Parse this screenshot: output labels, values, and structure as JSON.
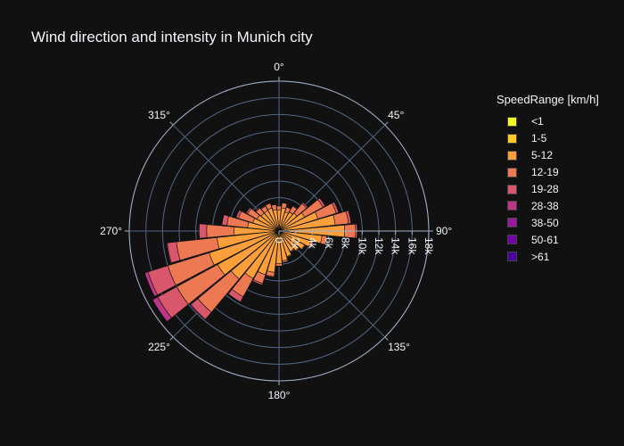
{
  "chart_data": {
    "type": "barpolar",
    "title": "Wind direction and intensity in Munich city",
    "legend_title": "SpeedRange [km/h]",
    "legend_placement": "right",
    "radial_axis": {
      "ticks": [
        "0",
        "2k",
        "4k",
        "6k",
        "8k",
        "10k",
        "12k",
        "14k",
        "16k",
        "18k"
      ],
      "range": [
        0,
        18000
      ],
      "angle_deg": 90
    },
    "angular_ticks": [
      "0°",
      "45°",
      "90°",
      "135°",
      "180°",
      "225°",
      "270°",
      "315°"
    ],
    "directions": [
      0,
      11.25,
      22.5,
      33.75,
      45,
      56.25,
      67.5,
      78.75,
      90,
      101.25,
      112.5,
      123.75,
      135,
      146.25,
      157.5,
      168.75,
      180,
      191.25,
      202.5,
      213.75,
      225,
      236.25,
      247.5,
      258.75,
      270,
      281.25,
      292.5,
      303.75,
      315,
      326.25,
      337.5,
      348.75
    ],
    "series": [
      {
        "name": "<1",
        "color": "#f0f921",
        "values": [
          0,
          0,
          0,
          0,
          0,
          0,
          0,
          0,
          0,
          0,
          0,
          0,
          0,
          0,
          0,
          0,
          0,
          0,
          0,
          0,
          0,
          0,
          0,
          0,
          0,
          0,
          0,
          0,
          0,
          0,
          0,
          0
        ]
      },
      {
        "name": "1-5",
        "color": "#fdca26",
        "values": [
          300,
          300,
          200,
          200,
          200,
          200,
          200,
          200,
          200,
          200,
          200,
          200,
          200,
          200,
          200,
          200,
          200,
          200,
          200,
          200,
          300,
          300,
          300,
          300,
          300,
          300,
          300,
          300,
          300,
          300,
          300,
          300
        ]
      },
      {
        "name": "5-12",
        "color": "#fb9f3a",
        "values": [
          2200,
          2500,
          2200,
          2400,
          2600,
          3300,
          4700,
          6600,
          7700,
          5000,
          3800,
          3300,
          2900,
          2600,
          3000,
          3400,
          3700,
          4800,
          5300,
          6300,
          7200,
          8100,
          8500,
          7200,
          5100,
          3500,
          3000,
          2700,
          2500,
          2500,
          2600,
          2300
        ]
      },
      {
        "name": "12-19",
        "color": "#ed7953",
        "values": [
          500,
          600,
          600,
          800,
          1500,
          2500,
          2300,
          1600,
          1300,
          600,
          300,
          100,
          100,
          100,
          100,
          200,
          300,
          500,
          1100,
          2500,
          5200,
          5600,
          5200,
          4900,
          3300,
          2500,
          1800,
          1300,
          800,
          600,
          600,
          600
        ]
      },
      {
        "name": "19-28",
        "color": "#d8576b",
        "values": [
          0,
          0,
          0,
          100,
          200,
          300,
          300,
          300,
          200,
          100,
          0,
          0,
          0,
          0,
          0,
          0,
          0,
          100,
          200,
          700,
          1100,
          2600,
          2500,
          1100,
          900,
          600,
          300,
          200,
          100,
          100,
          0,
          0
        ]
      },
      {
        "name": "28-38",
        "color": "#bd3786",
        "values": [
          0,
          0,
          0,
          0,
          0,
          0,
          0,
          0,
          0,
          0,
          0,
          0,
          0,
          0,
          0,
          0,
          0,
          0,
          0,
          0,
          100,
          700,
          400,
          100,
          0,
          0,
          0,
          0,
          0,
          0,
          0,
          0
        ]
      },
      {
        "name": "38-50",
        "color": "#9c179e",
        "values": [
          0,
          0,
          0,
          0,
          0,
          0,
          0,
          0,
          0,
          0,
          0,
          0,
          0,
          0,
          0,
          0,
          0,
          0,
          0,
          0,
          0,
          0,
          0,
          0,
          0,
          0,
          0,
          0,
          0,
          0,
          0,
          0
        ]
      },
      {
        "name": "50-61",
        "color": "#7201a8",
        "values": [
          0,
          0,
          0,
          0,
          0,
          0,
          0,
          0,
          0,
          0,
          0,
          0,
          0,
          0,
          0,
          0,
          0,
          0,
          0,
          0,
          0,
          0,
          0,
          0,
          0,
          0,
          0,
          0,
          0,
          0,
          0,
          0
        ]
      },
      {
        "name": ">61",
        "color": "#46039f",
        "values": [
          0,
          0,
          0,
          0,
          0,
          0,
          0,
          0,
          0,
          0,
          0,
          0,
          0,
          0,
          0,
          0,
          0,
          0,
          0,
          0,
          0,
          0,
          0,
          0,
          0,
          0,
          0,
          0,
          0,
          0,
          0,
          0
        ]
      }
    ]
  }
}
